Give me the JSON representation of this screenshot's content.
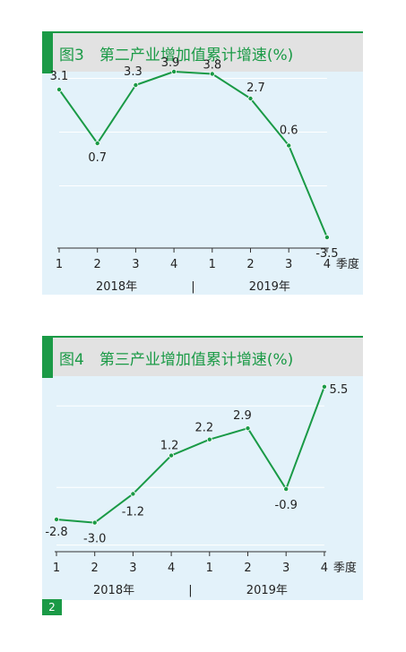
{
  "colors": {
    "accent": "#1a9a46",
    "panel_bg": "#e3f2fa",
    "header_bg": "#e2e2e2",
    "line": "#1a9a46",
    "grid": "#ffffff",
    "text": "#222222"
  },
  "page_number": "2",
  "chart_data": [
    {
      "type": "line",
      "title": "图3　第二产业增加值累计增速(%)",
      "categories": [
        "1",
        "2",
        "3",
        "4",
        "1",
        "2",
        "3",
        "4"
      ],
      "values": [
        3.1,
        0.7,
        3.3,
        3.9,
        3.8,
        2.7,
        0.6,
        -3.5
      ],
      "value_labels": [
        "3.1",
        "0.7",
        "3.3",
        "3.9",
        "3.8",
        "2.7",
        "0.6",
        "-3.5"
      ],
      "xlabel": "季度",
      "year_labels": [
        "2018年",
        "2019年"
      ],
      "year_separator": "|",
      "ylim": [
        -4.5,
        4.5
      ],
      "grid": true,
      "legend": "none"
    },
    {
      "type": "line",
      "title": "图4　第三产业增加值累计增速(%)",
      "categories": [
        "1",
        "2",
        "3",
        "4",
        "1",
        "2",
        "3",
        "4"
      ],
      "values": [
        -2.8,
        -3.0,
        -1.2,
        1.2,
        2.2,
        2.9,
        -0.9,
        5.5
      ],
      "value_labels": [
        "-2.8",
        "-3.0",
        "-1.2",
        "1.2",
        "2.2",
        "2.9",
        "-0.9",
        "5.5"
      ],
      "xlabel": "季度",
      "year_labels": [
        "2018年",
        "2019年"
      ],
      "year_separator": "|",
      "ylim": [
        -7,
        7
      ],
      "grid": true,
      "legend": "none"
    }
  ]
}
